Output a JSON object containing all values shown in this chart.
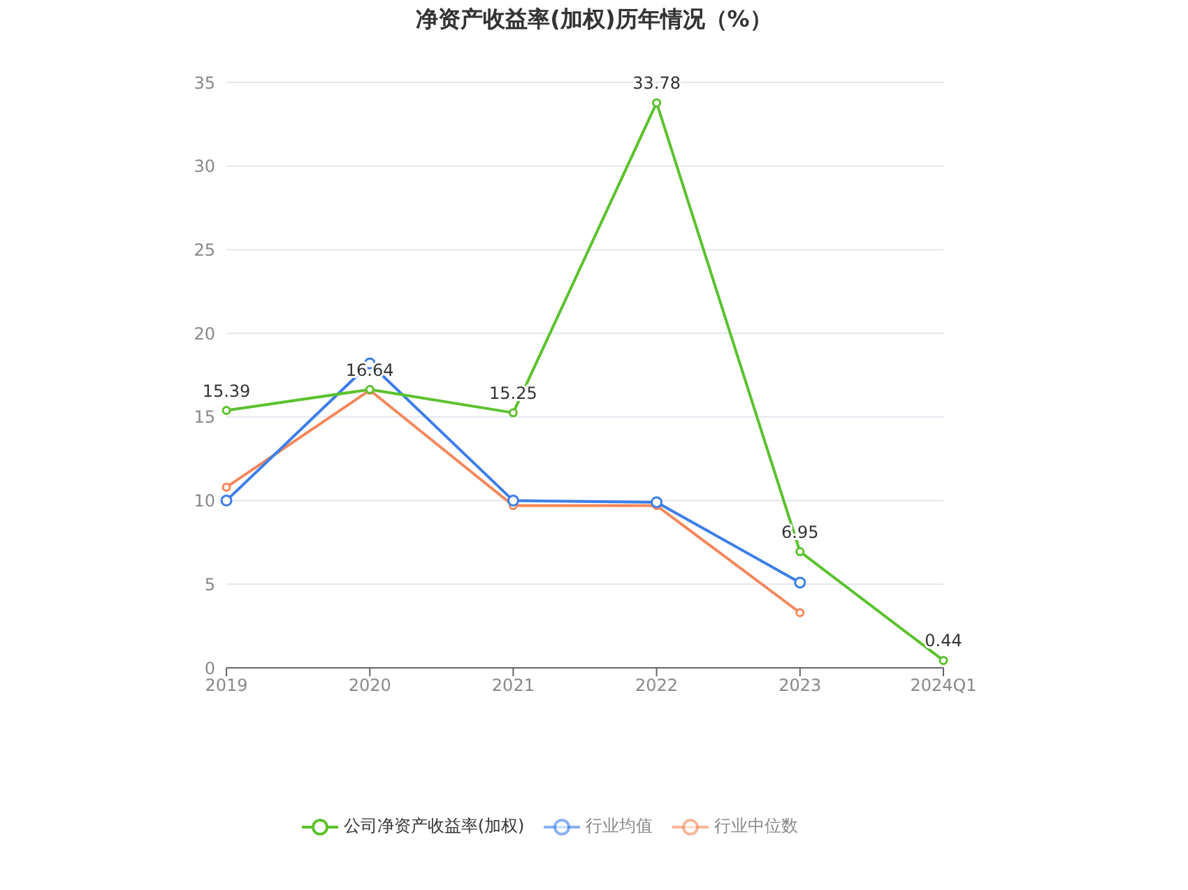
{
  "chart_data": {
    "type": "line",
    "title": "净资产收益率(加权)历年情况（%）",
    "categories": [
      "2019",
      "2020",
      "2021",
      "2022",
      "2023",
      "2024Q1"
    ],
    "series": [
      {
        "name": "公司净资产收益率(加权)",
        "color": "#5cc12e",
        "values": [
          15.39,
          16.64,
          15.25,
          33.78,
          6.95,
          0.44
        ],
        "value_labels": [
          "15.39",
          "16.64",
          "15.25",
          "33.78",
          "6.95",
          "0.44"
        ]
      },
      {
        "name": "行业均值",
        "color": "#3d7ee8",
        "values": [
          10,
          18.2,
          10,
          9.9,
          5.1,
          null
        ]
      },
      {
        "name": "行业中位数",
        "color": "#f5865a",
        "values": [
          10.8,
          16.6,
          9.7,
          9.7,
          3.3,
          null
        ]
      }
    ],
    "ylim": [
      0,
      35
    ],
    "yticks": [
      0,
      5,
      10,
      15,
      20,
      25,
      30,
      35
    ],
    "grid": "y",
    "legend": "bottom",
    "marker": "circle",
    "line_style": "solid"
  }
}
